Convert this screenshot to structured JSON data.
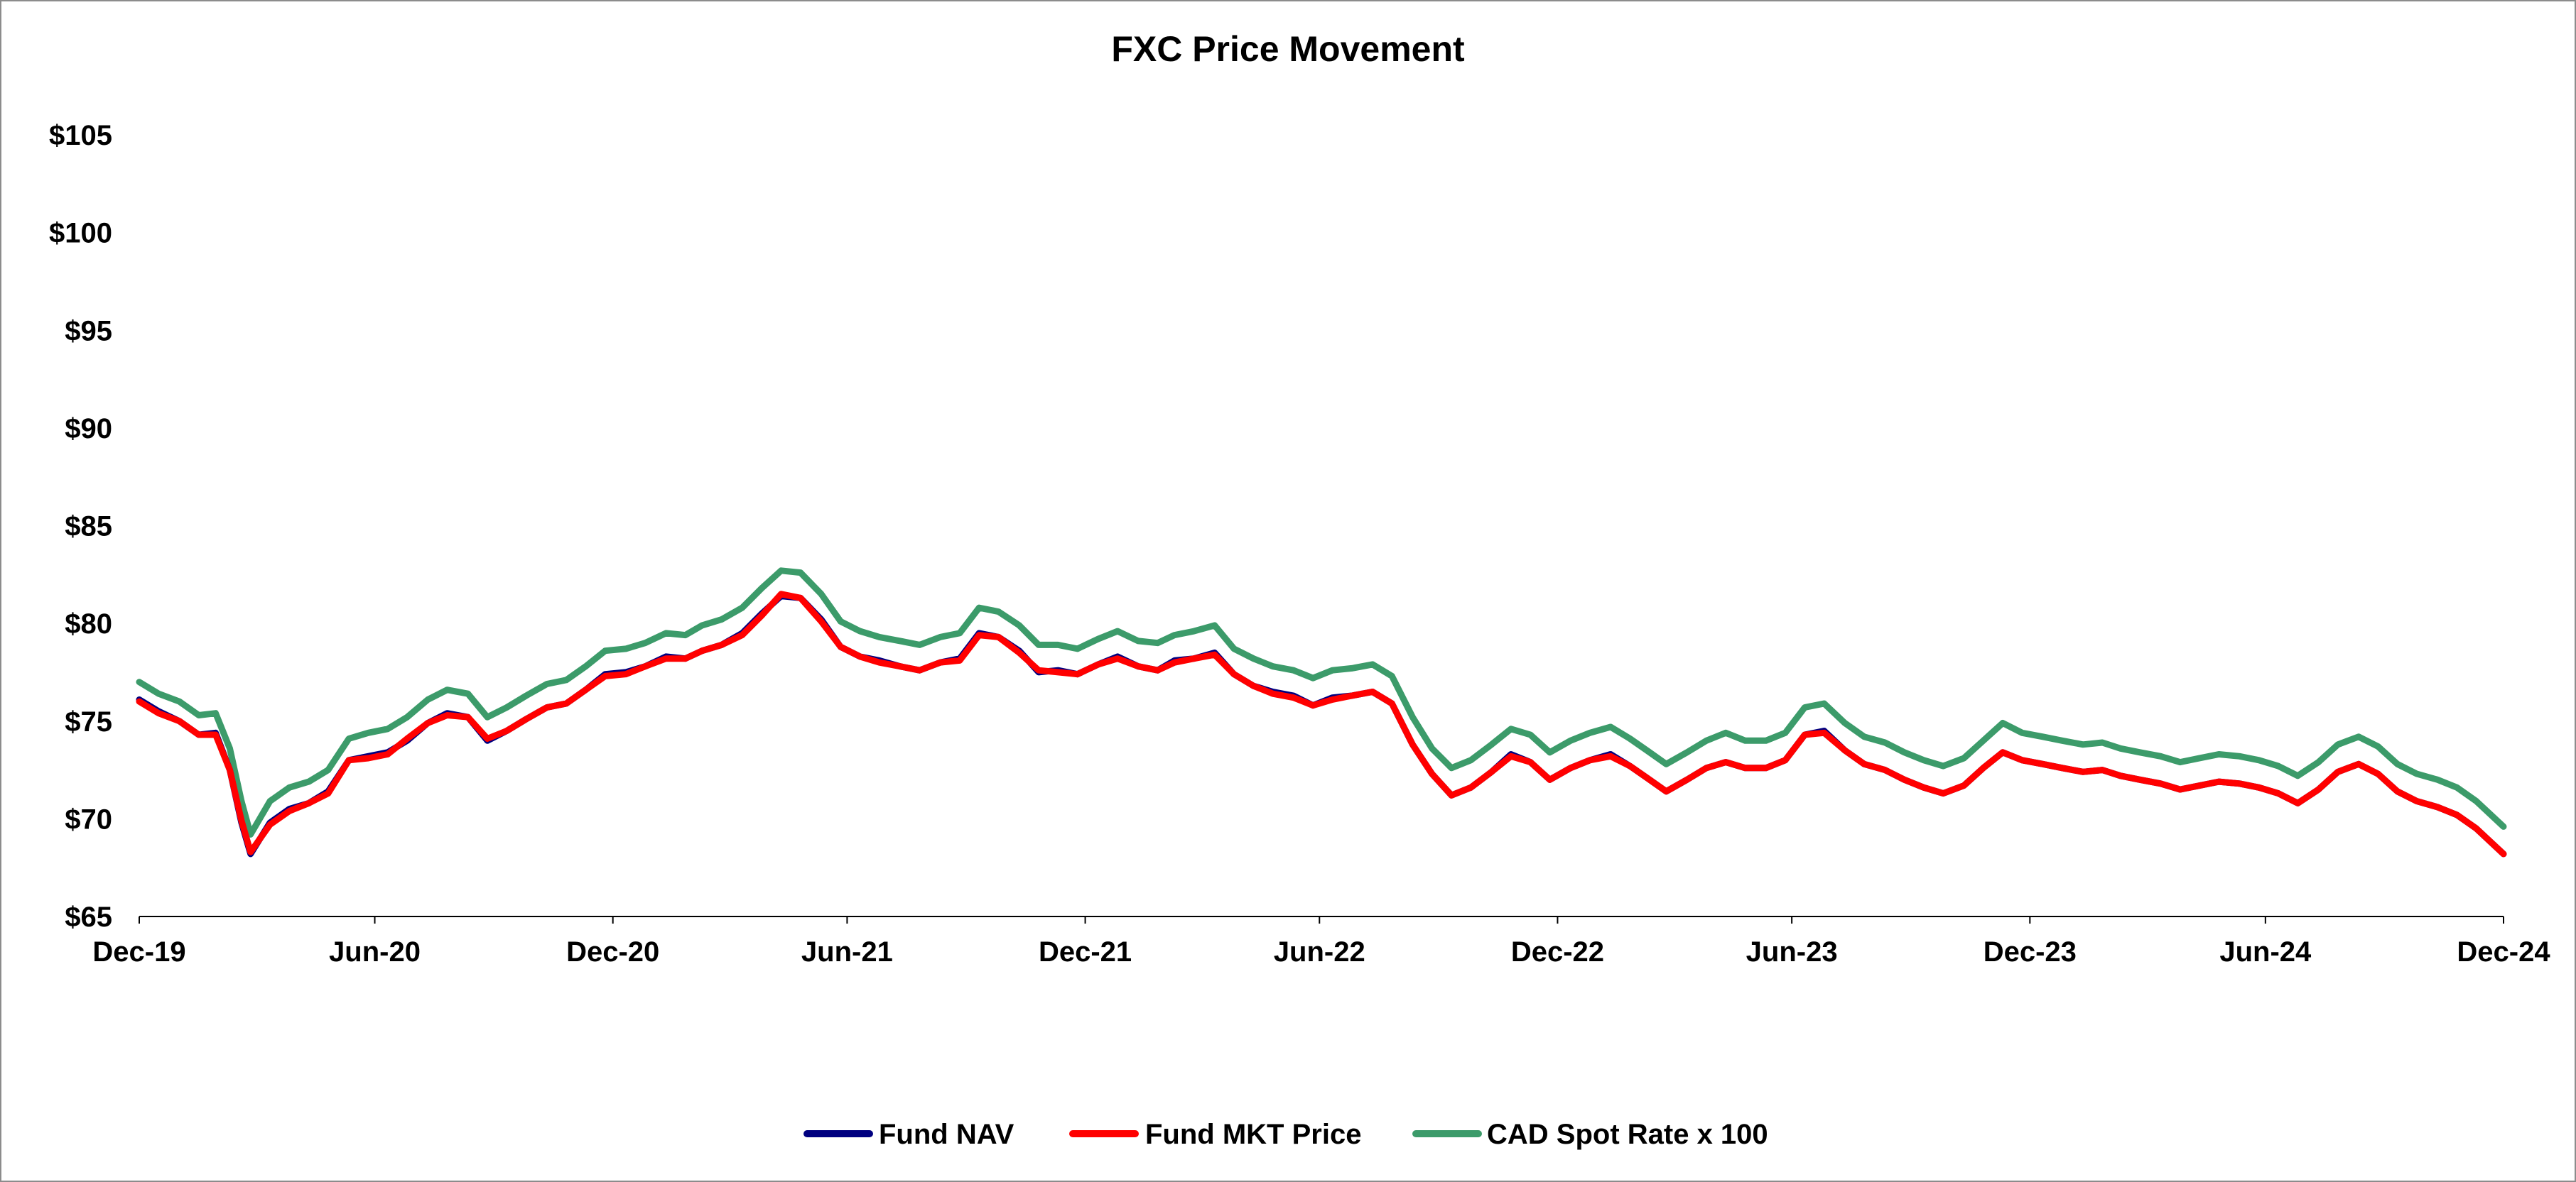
{
  "chart_data": {
    "type": "line",
    "title": "FXC Price Movement",
    "xlabel": "",
    "ylabel": "",
    "y_unit_prefix": "$",
    "ylim": [
      65,
      105
    ],
    "yticks": [
      65,
      70,
      75,
      80,
      85,
      90,
      95,
      100,
      105
    ],
    "xlim": [
      "2019-12-31",
      "2024-12-31"
    ],
    "xticks": [
      {
        "date": "2019-12-31",
        "label": "Dec-19"
      },
      {
        "date": "2020-06-30",
        "label": "Jun-20"
      },
      {
        "date": "2020-12-31",
        "label": "Dec-20"
      },
      {
        "date": "2021-06-30",
        "label": "Jun-21"
      },
      {
        "date": "2021-12-31",
        "label": "Dec-21"
      },
      {
        "date": "2022-06-30",
        "label": "Jun-22"
      },
      {
        "date": "2022-12-31",
        "label": "Dec-22"
      },
      {
        "date": "2023-06-30",
        "label": "Jun-23"
      },
      {
        "date": "2023-12-31",
        "label": "Dec-23"
      },
      {
        "date": "2024-06-30",
        "label": "Jun-24"
      },
      {
        "date": "2024-12-31",
        "label": "Dec-24"
      }
    ],
    "grid": false,
    "legend_position": "bottom-center",
    "x": [
      "2019-12-31",
      "2020-01-15",
      "2020-01-31",
      "2020-02-15",
      "2020-02-28",
      "2020-03-10",
      "2020-03-19",
      "2020-03-26",
      "2020-04-10",
      "2020-04-25",
      "2020-05-10",
      "2020-05-25",
      "2020-06-10",
      "2020-06-25",
      "2020-07-10",
      "2020-07-25",
      "2020-08-10",
      "2020-08-25",
      "2020-09-10",
      "2020-09-25",
      "2020-10-10",
      "2020-10-25",
      "2020-11-10",
      "2020-11-25",
      "2020-12-10",
      "2020-12-25",
      "2021-01-10",
      "2021-01-25",
      "2021-02-10",
      "2021-02-25",
      "2021-03-10",
      "2021-03-25",
      "2021-04-10",
      "2021-04-25",
      "2021-05-10",
      "2021-05-25",
      "2021-06-10",
      "2021-06-25",
      "2021-07-10",
      "2021-07-25",
      "2021-08-10",
      "2021-08-25",
      "2021-09-10",
      "2021-09-25",
      "2021-10-10",
      "2021-10-25",
      "2021-11-10",
      "2021-11-25",
      "2021-12-10",
      "2021-12-25",
      "2022-01-10",
      "2022-01-25",
      "2022-02-10",
      "2022-02-25",
      "2022-03-10",
      "2022-03-25",
      "2022-04-10",
      "2022-04-25",
      "2022-05-10",
      "2022-05-25",
      "2022-06-10",
      "2022-06-25",
      "2022-07-10",
      "2022-07-25",
      "2022-08-10",
      "2022-08-25",
      "2022-09-10",
      "2022-09-25",
      "2022-10-10",
      "2022-10-25",
      "2022-11-10",
      "2022-11-25",
      "2022-12-10",
      "2022-12-25",
      "2023-01-10",
      "2023-01-25",
      "2023-02-10",
      "2023-02-25",
      "2023-03-10",
      "2023-03-25",
      "2023-04-10",
      "2023-04-25",
      "2023-05-10",
      "2023-05-25",
      "2023-06-10",
      "2023-06-25",
      "2023-07-10",
      "2023-07-25",
      "2023-08-10",
      "2023-08-25",
      "2023-09-10",
      "2023-09-25",
      "2023-10-10",
      "2023-10-25",
      "2023-11-10",
      "2023-11-25",
      "2023-12-10",
      "2023-12-25",
      "2024-01-10",
      "2024-01-25",
      "2024-02-10",
      "2024-02-25",
      "2024-03-10",
      "2024-03-25",
      "2024-04-10",
      "2024-04-25",
      "2024-05-10",
      "2024-05-25",
      "2024-06-10",
      "2024-06-25",
      "2024-07-10",
      "2024-07-25",
      "2024-08-10",
      "2024-08-25",
      "2024-09-10",
      "2024-09-25",
      "2024-10-10",
      "2024-10-25",
      "2024-11-10",
      "2024-11-25",
      "2024-12-10",
      "2024-12-31"
    ],
    "series": [
      {
        "name": "Fund NAV",
        "color": "#000080",
        "values": [
          76.1,
          75.5,
          75.0,
          74.3,
          74.4,
          72.5,
          69.8,
          68.2,
          69.8,
          70.5,
          70.8,
          71.4,
          73.0,
          73.2,
          73.4,
          74.0,
          74.9,
          75.4,
          75.2,
          74.0,
          74.5,
          75.1,
          75.7,
          75.9,
          76.6,
          77.4,
          77.5,
          77.8,
          78.3,
          78.2,
          78.6,
          78.9,
          79.5,
          80.5,
          81.4,
          81.3,
          80.2,
          78.8,
          78.3,
          78.1,
          77.8,
          77.6,
          78.0,
          78.2,
          79.5,
          79.3,
          78.6,
          77.5,
          77.6,
          77.4,
          77.9,
          78.3,
          77.8,
          77.6,
          78.1,
          78.2,
          78.5,
          77.4,
          76.8,
          76.5,
          76.3,
          75.8,
          76.2,
          76.3,
          76.5,
          75.9,
          73.8,
          72.3,
          71.2,
          71.6,
          72.4,
          73.3,
          72.9,
          72.0,
          72.6,
          73.0,
          73.3,
          72.7,
          72.1,
          71.4,
          72.0,
          72.6,
          72.9,
          72.6,
          72.6,
          73.0,
          74.3,
          74.5,
          73.5,
          72.8,
          72.5,
          72.0,
          71.6,
          71.3,
          71.7,
          72.6,
          73.4,
          73.0,
          72.8,
          72.6,
          72.4,
          72.5,
          72.2,
          72.0,
          71.8,
          71.5,
          71.7,
          71.9,
          71.8,
          71.6,
          71.3,
          70.8,
          71.5,
          72.4,
          72.8,
          72.3,
          71.4,
          70.9,
          70.6,
          70.2,
          69.5,
          68.2
        ]
      },
      {
        "name": "Fund MKT Price",
        "color": "#ff0000",
        "values": [
          76.0,
          75.4,
          75.0,
          74.3,
          74.3,
          72.5,
          69.9,
          68.3,
          69.7,
          70.4,
          70.8,
          71.3,
          73.0,
          73.1,
          73.3,
          74.1,
          74.9,
          75.3,
          75.2,
          74.1,
          74.5,
          75.1,
          75.7,
          75.9,
          76.6,
          77.3,
          77.4,
          77.8,
          78.2,
          78.2,
          78.6,
          78.9,
          79.4,
          80.4,
          81.5,
          81.3,
          80.1,
          78.8,
          78.3,
          78.0,
          77.8,
          77.6,
          78.0,
          78.1,
          79.4,
          79.3,
          78.5,
          77.6,
          77.5,
          77.4,
          77.9,
          78.2,
          77.8,
          77.6,
          78.0,
          78.2,
          78.4,
          77.4,
          76.8,
          76.4,
          76.2,
          75.8,
          76.1,
          76.3,
          76.5,
          75.9,
          73.8,
          72.3,
          71.2,
          71.6,
          72.4,
          73.2,
          72.9,
          72.0,
          72.6,
          73.0,
          73.2,
          72.7,
          72.1,
          71.4,
          72.0,
          72.6,
          72.9,
          72.6,
          72.6,
          73.0,
          74.3,
          74.4,
          73.5,
          72.8,
          72.5,
          72.0,
          71.6,
          71.3,
          71.7,
          72.6,
          73.4,
          73.0,
          72.8,
          72.6,
          72.4,
          72.5,
          72.2,
          72.0,
          71.8,
          71.5,
          71.7,
          71.9,
          71.8,
          71.6,
          71.3,
          70.8,
          71.5,
          72.4,
          72.8,
          72.3,
          71.4,
          70.9,
          70.6,
          70.2,
          69.5,
          68.2
        ]
      },
      {
        "name": "CAD Spot Rate x 100",
        "color": "#3c9b6a",
        "values": [
          77.0,
          76.4,
          76.0,
          75.3,
          75.4,
          73.6,
          70.9,
          69.2,
          70.9,
          71.6,
          71.9,
          72.5,
          74.1,
          74.4,
          74.6,
          75.2,
          76.1,
          76.6,
          76.4,
          75.2,
          75.7,
          76.3,
          76.9,
          77.1,
          77.8,
          78.6,
          78.7,
          79.0,
          79.5,
          79.4,
          79.9,
          80.2,
          80.8,
          81.8,
          82.7,
          82.6,
          81.5,
          80.1,
          79.6,
          79.3,
          79.1,
          78.9,
          79.3,
          79.5,
          80.8,
          80.6,
          79.9,
          78.9,
          78.9,
          78.7,
          79.2,
          79.6,
          79.1,
          79.0,
          79.4,
          79.6,
          79.9,
          78.7,
          78.2,
          77.8,
          77.6,
          77.2,
          77.6,
          77.7,
          77.9,
          77.3,
          75.2,
          73.6,
          72.6,
          73.0,
          73.8,
          74.6,
          74.3,
          73.4,
          74.0,
          74.4,
          74.7,
          74.1,
          73.5,
          72.8,
          73.4,
          74.0,
          74.4,
          74.0,
          74.0,
          74.4,
          75.7,
          75.9,
          74.9,
          74.2,
          73.9,
          73.4,
          73.0,
          72.7,
          73.1,
          74.0,
          74.9,
          74.4,
          74.2,
          74.0,
          73.8,
          73.9,
          73.6,
          73.4,
          73.2,
          72.9,
          73.1,
          73.3,
          73.2,
          73.0,
          72.7,
          72.2,
          72.9,
          73.8,
          74.2,
          73.7,
          72.8,
          72.3,
          72.0,
          71.6,
          70.9,
          69.6
        ]
      }
    ]
  }
}
